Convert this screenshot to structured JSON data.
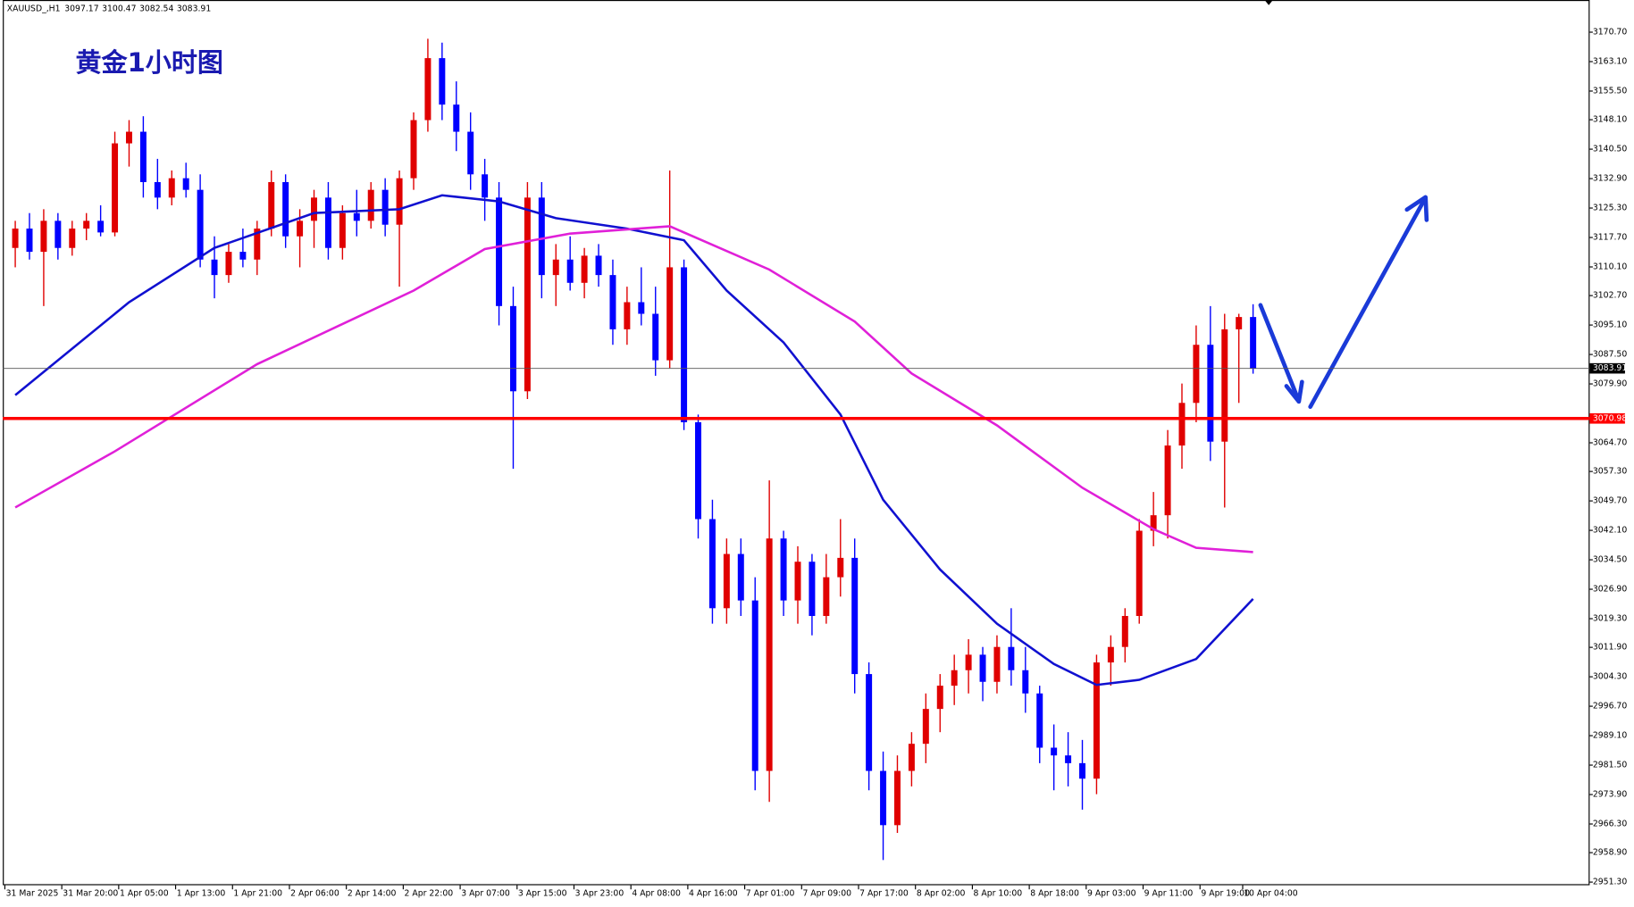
{
  "chart_data": {
    "type": "candlestick",
    "title": "黄金1小时图",
    "symbol": "XAUUSD_,H1",
    "up_color": "#e00000",
    "down_color": "#0000ff",
    "categories": [
      "31 Mar 2025",
      null,
      null,
      null,
      "31 Mar 20:00",
      null,
      null,
      null,
      "1 Apr 05:00",
      null,
      null,
      null,
      "1 Apr 13:00",
      null,
      null,
      null,
      "1 Apr 21:00",
      null,
      null,
      null,
      "2 Apr 06:00",
      null,
      null,
      null,
      "2 Apr 14:00",
      null,
      null,
      null,
      "2 Apr 22:00",
      null,
      null,
      null,
      "3 Apr 07:00",
      null,
      null,
      null,
      "3 Apr 15:00",
      null,
      null,
      null,
      "3 Apr 23:00",
      null,
      null,
      null,
      "4 Apr 08:00",
      null,
      null,
      null,
      "4 Apr 16:00",
      null,
      null,
      null,
      "7 Apr 01:00",
      null,
      null,
      null,
      "7 Apr 09:00",
      null,
      null,
      null,
      "7 Apr 17:00",
      null,
      null,
      null,
      "8 Apr 02:00",
      null,
      null,
      null,
      "8 Apr 10:00",
      null,
      null,
      null,
      "8 Apr 18:00",
      null,
      null,
      null,
      "9 Apr 03:00",
      null,
      null,
      null,
      "9 Apr 11:00",
      null,
      null,
      null,
      "9 Apr 19:00",
      null,
      null,
      "10 Apr 04:00"
    ],
    "candles": [
      [
        3115,
        3122,
        3110,
        3120
      ],
      [
        3120,
        3124,
        3112,
        3114
      ],
      [
        3114,
        3125,
        3100,
        3122
      ],
      [
        3122,
        3124,
        3112,
        3115
      ],
      [
        3115,
        3122,
        3113,
        3120
      ],
      [
        3120,
        3124,
        3117,
        3122
      ],
      [
        3122,
        3126,
        3118,
        3119
      ],
      [
        3119,
        3145,
        3118,
        3142
      ],
      [
        3142,
        3148,
        3136,
        3145
      ],
      [
        3145,
        3149,
        3128,
        3132
      ],
      [
        3132,
        3138,
        3125,
        3128
      ],
      [
        3128,
        3135,
        3126,
        3133
      ],
      [
        3133,
        3137,
        3128,
        3130
      ],
      [
        3130,
        3134,
        3110,
        3112
      ],
      [
        3112,
        3118,
        3102,
        3108
      ],
      [
        3108,
        3116,
        3106,
        3114
      ],
      [
        3114,
        3120,
        3110,
        3112
      ],
      [
        3112,
        3122,
        3108,
        3120
      ],
      [
        3120,
        3135,
        3118,
        3132
      ],
      [
        3132,
        3134,
        3115,
        3118
      ],
      [
        3118,
        3125,
        3110,
        3122
      ],
      [
        3122,
        3130,
        3115,
        3128
      ],
      [
        3128,
        3132,
        3112,
        3115
      ],
      [
        3115,
        3126,
        3112,
        3124
      ],
      [
        3124,
        3130,
        3118,
        3122
      ],
      [
        3122,
        3132,
        3120,
        3130
      ],
      [
        3130,
        3133,
        3118,
        3121
      ],
      [
        3121,
        3135,
        3105,
        3133
      ],
      [
        3133,
        3150,
        3130,
        3148
      ],
      [
        3148,
        3169,
        3145,
        3164
      ],
      [
        3164,
        3168,
        3148,
        3152
      ],
      [
        3152,
        3158,
        3140,
        3145
      ],
      [
        3145,
        3150,
        3130,
        3134
      ],
      [
        3134,
        3138,
        3122,
        3128
      ],
      [
        3128,
        3132,
        3095,
        3100
      ],
      [
        3100,
        3105,
        3058,
        3078
      ],
      [
        3078,
        3132,
        3076,
        3128
      ],
      [
        3128,
        3132,
        3102,
        3108
      ],
      [
        3108,
        3116,
        3100,
        3112
      ],
      [
        3112,
        3118,
        3104,
        3106
      ],
      [
        3106,
        3115,
        3102,
        3113
      ],
      [
        3113,
        3116,
        3105,
        3108
      ],
      [
        3108,
        3112,
        3090,
        3094
      ],
      [
        3094,
        3105,
        3090,
        3101
      ],
      [
        3101,
        3110,
        3095,
        3098
      ],
      [
        3098,
        3105,
        3082,
        3086
      ],
      [
        3086,
        3135,
        3084,
        3110
      ],
      [
        3110,
        3112,
        3068,
        3070
      ],
      [
        3070,
        3072,
        3040,
        3045
      ],
      [
        3045,
        3050,
        3018,
        3022
      ],
      [
        3022,
        3040,
        3018,
        3036
      ],
      [
        3036,
        3040,
        3020,
        3024
      ],
      [
        3024,
        3030,
        2975,
        2980
      ],
      [
        2980,
        3055,
        2972,
        3040
      ],
      [
        3040,
        3042,
        3020,
        3024
      ],
      [
        3024,
        3038,
        3018,
        3034
      ],
      [
        3034,
        3036,
        3015,
        3020
      ],
      [
        3020,
        3036,
        3018,
        3030
      ],
      [
        3030,
        3045,
        3025,
        3035
      ],
      [
        3035,
        3040,
        3000,
        3005
      ],
      [
        3005,
        3008,
        2975,
        2980
      ],
      [
        2980,
        2985,
        2957,
        2966
      ],
      [
        2966,
        2984,
        2964,
        2980
      ],
      [
        2980,
        2990,
        2976,
        2987
      ],
      [
        2987,
        3000,
        2982,
        2996
      ],
      [
        2996,
        3005,
        2990,
        3002
      ],
      [
        3002,
        3010,
        2997,
        3006
      ],
      [
        3006,
        3014,
        3000,
        3010
      ],
      [
        3010,
        3012,
        2998,
        3003
      ],
      [
        3003,
        3015,
        3000,
        3012
      ],
      [
        3012,
        3022,
        3002,
        3006
      ],
      [
        3006,
        3012,
        2995,
        3000
      ],
      [
        3000,
        3002,
        2982,
        2986
      ],
      [
        2986,
        2992,
        2975,
        2984
      ],
      [
        2984,
        2990,
        2976,
        2982
      ],
      [
        2982,
        2988,
        2970,
        2978
      ],
      [
        2978,
        3010,
        2974,
        3008
      ],
      [
        3008,
        3015,
        3002,
        3012
      ],
      [
        3012,
        3022,
        3008,
        3020
      ],
      [
        3020,
        3045,
        3018,
        3042
      ],
      [
        3042,
        3052,
        3038,
        3046
      ],
      [
        3046,
        3068,
        3040,
        3064
      ],
      [
        3064,
        3080,
        3058,
        3075
      ],
      [
        3075,
        3095,
        3070,
        3090
      ],
      [
        3090,
        3100,
        3060,
        3065
      ],
      [
        3065,
        3098,
        3048,
        3094
      ],
      [
        3094,
        3098,
        3075,
        3097.17
      ],
      [
        3097.17,
        3100.47,
        3082.54,
        3083.91
      ]
    ],
    "lines": [
      {
        "color": "#1010d0",
        "x": [
          0,
          8,
          14,
          21,
          27,
          30,
          34,
          38,
          43,
          47,
          50,
          54,
          58,
          61,
          65,
          69,
          73,
          76,
          79,
          83,
          87
        ],
        "values": [
          3077,
          3101,
          3115,
          3124,
          3125,
          3128.6,
          3127,
          3122.7,
          3120,
          3117,
          3104,
          3090.6,
          3072,
          3050,
          3032,
          3018,
          3007.6,
          3002.2,
          3003.5,
          3008.9,
          3024.4
        ]
      },
      {
        "color": "#e020d8",
        "x": [
          0,
          7,
          17,
          28,
          33,
          39,
          46,
          53,
          59,
          63,
          69,
          75,
          80,
          83,
          87
        ],
        "values": [
          3048,
          3062.5,
          3085,
          3104,
          3114.7,
          3118.7,
          3120.6,
          3109.4,
          3096,
          3082.6,
          3069.2,
          3053.1,
          3042.4,
          3037.6,
          3036.5
        ]
      }
    ],
    "current_price": 3083.91,
    "level": 3070.98,
    "level_color": "#ff0000",
    "ylim": [
      2951.3,
      3170.7
    ],
    "yticks": [
      {
        "value": 3170.7,
        "label": "3170.70"
      },
      {
        "value": 3163.1,
        "label": "3163.10"
      },
      {
        "value": 3155.5,
        "label": "3155.50"
      },
      {
        "value": 3148.1,
        "label": "3148.10"
      },
      {
        "value": 3140.5,
        "label": "3140.50"
      },
      {
        "value": 3132.9,
        "label": "3132.90"
      },
      {
        "value": 3125.3,
        "label": "3125.30"
      },
      {
        "value": 3117.7,
        "label": "3117.70"
      },
      {
        "value": 3110.1,
        "label": "3110.10"
      },
      {
        "value": 3102.7,
        "label": "3102.70"
      },
      {
        "value": 3095.1,
        "label": "3095.10"
      },
      {
        "value": 3087.5,
        "label": "3087.50"
      },
      {
        "value": 3079.9,
        "label": "3079.90"
      },
      {
        "value": 3064.7,
        "label": "3064.70"
      },
      {
        "value": 3057.3,
        "label": "3057.30"
      },
      {
        "value": 3049.7,
        "label": "3049.70"
      },
      {
        "value": 3042.1,
        "label": "3042.10"
      },
      {
        "value": 3034.5,
        "label": "3034.50"
      },
      {
        "value": 3026.9,
        "label": "3026.90"
      },
      {
        "value": 3019.3,
        "label": "3019.30"
      },
      {
        "value": 3011.9,
        "label": "3011.90"
      },
      {
        "value": 3004.3,
        "label": "3004.30"
      },
      {
        "value": 2996.7,
        "label": "2996.70"
      },
      {
        "value": 2989.1,
        "label": "2989.10"
      },
      {
        "value": 2981.5,
        "label": "2981.50"
      },
      {
        "value": 2973.9,
        "label": "2973.90"
      },
      {
        "value": 2966.3,
        "label": "2966.30"
      },
      {
        "value": 2958.9,
        "label": "2958.90"
      },
      {
        "value": 2951.3,
        "label": "2951.30"
      }
    ]
  }
}
